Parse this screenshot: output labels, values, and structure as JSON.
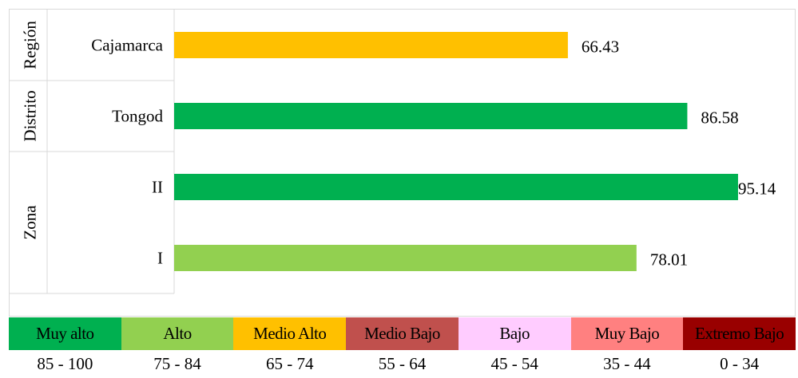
{
  "chart_data": {
    "type": "bar",
    "orientation": "horizontal",
    "groups": [
      {
        "name": "Región",
        "categories": [
          "Cajamarca"
        ]
      },
      {
        "name": "Distrito",
        "categories": [
          "Tongod"
        ]
      },
      {
        "name": "Zona",
        "categories": [
          "II",
          "I"
        ]
      }
    ],
    "categories": [
      "Cajamarca",
      "Tongod",
      "II",
      "I"
    ],
    "values": [
      66.43,
      86.58,
      95.14,
      78.01
    ],
    "data_labels": [
      "66.43",
      "86.58",
      "95.14",
      "78.01"
    ],
    "bar_colors": [
      "#ffc000",
      "#00b050",
      "#00b050",
      "#92d050"
    ],
    "xlim": [
      0,
      100
    ],
    "grid": false,
    "title": "",
    "xlabel": "",
    "ylabel": ""
  },
  "legend": [
    {
      "label": "Muy alto",
      "range": "85 - 100",
      "color": "#00b050",
      "text_color": "#000000"
    },
    {
      "label": "Alto",
      "range": "75 - 84",
      "color": "#92d050",
      "text_color": "#000000"
    },
    {
      "label": "Medio Alto",
      "range": "65 - 74",
      "color": "#ffc000",
      "text_color": "#000000"
    },
    {
      "label": "Medio Bajo",
      "range": "55 - 64",
      "color": "#c0504d",
      "text_color": "#000000"
    },
    {
      "label": "Bajo",
      "range": "45 - 54",
      "color": "#ffccff",
      "text_color": "#000000"
    },
    {
      "label": "Muy Bajo",
      "range": "35 - 44",
      "color": "#ff8080",
      "text_color": "#000000"
    },
    {
      "label": "Extremo Bajo",
      "range": "0 - 34",
      "color": "#990000",
      "text_color": "#000000"
    }
  ]
}
